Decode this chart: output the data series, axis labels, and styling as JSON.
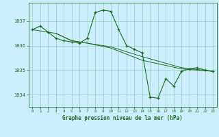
{
  "title": "Graphe pression niveau de la mer (hPa)",
  "bg_color": "#cceeff",
  "grid_color": "#99ccbb",
  "line_color": "#1a6b1a",
  "xlim": [
    -0.5,
    23.5
  ],
  "ylim": [
    1033.5,
    1037.75
  ],
  "yticks": [
    1034,
    1035,
    1036,
    1037
  ],
  "xticks": [
    0,
    1,
    2,
    3,
    4,
    5,
    6,
    7,
    8,
    9,
    10,
    11,
    12,
    13,
    14,
    15,
    16,
    17,
    18,
    19,
    20,
    21,
    22,
    23
  ],
  "series1": [
    [
      0,
      1036.65
    ],
    [
      1,
      1036.8
    ],
    [
      2,
      1036.55
    ],
    [
      3,
      1036.3
    ],
    [
      4,
      1036.2
    ],
    [
      5,
      1036.15
    ],
    [
      6,
      1036.1
    ],
    [
      7,
      1036.3
    ],
    [
      8,
      1037.35
    ],
    [
      9,
      1037.45
    ],
    [
      10,
      1037.4
    ],
    [
      11,
      1036.65
    ],
    [
      12,
      1036.0
    ],
    [
      13,
      1035.85
    ],
    [
      14,
      1035.7
    ],
    [
      15,
      1033.9
    ],
    [
      16,
      1033.85
    ],
    [
      17,
      1034.65
    ],
    [
      18,
      1034.35
    ],
    [
      19,
      1034.95
    ],
    [
      20,
      1035.05
    ],
    [
      21,
      1035.1
    ],
    [
      22,
      1035.0
    ],
    [
      23,
      1034.95
    ]
  ],
  "series2": [
    [
      0,
      1036.65
    ],
    [
      3,
      1036.5
    ],
    [
      5,
      1036.2
    ],
    [
      7,
      1036.1
    ],
    [
      10,
      1035.95
    ],
    [
      14,
      1035.55
    ],
    [
      19,
      1035.1
    ],
    [
      23,
      1034.95
    ]
  ],
  "series3": [
    [
      3,
      1036.5
    ],
    [
      5,
      1036.2
    ],
    [
      7,
      1036.1
    ],
    [
      10,
      1035.9
    ],
    [
      14,
      1035.4
    ],
    [
      19,
      1035.05
    ],
    [
      23,
      1034.95
    ]
  ]
}
